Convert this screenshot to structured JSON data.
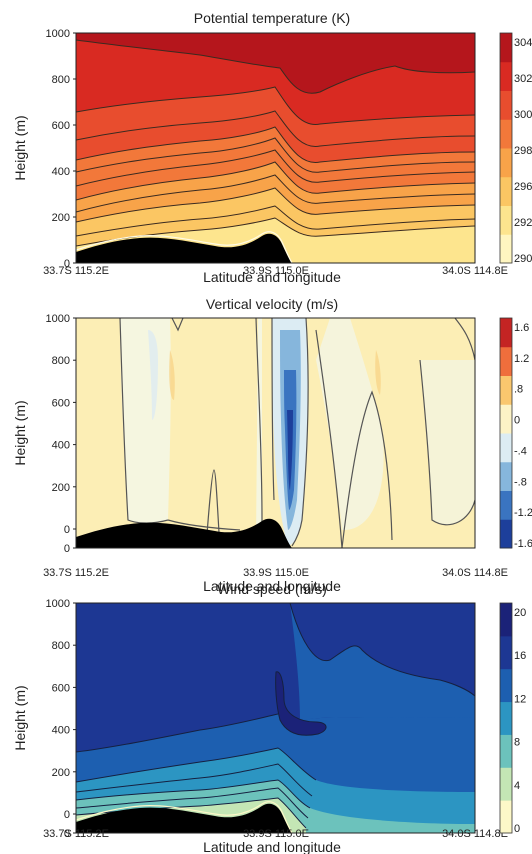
{
  "chart_data": [
    {
      "type": "heatmap",
      "title": "Potential temperature (K)",
      "xlabel": "Latitude and longitude",
      "ylabel": "Height (m)",
      "x_ticks": [
        "33.7S 115.2E",
        "33.9S 115.0E",
        "34.0S 114.8E"
      ],
      "y_ticks": [
        "0",
        "200",
        "400",
        "600",
        "800",
        "1000"
      ],
      "ylim": [
        0,
        1000
      ],
      "colorbar_ticks": [
        "304",
        "302",
        "300",
        "298",
        "296",
        "292",
        "290"
      ],
      "colorscale": [
        "#fff6c0",
        "#fde58e",
        "#fbc663",
        "#f8a349",
        "#f2783a",
        "#e84d2e",
        "#d92a22",
        "#b5161c"
      ]
    },
    {
      "type": "heatmap",
      "title": "Vertical velocity (m/s)",
      "xlabel": "Latitude and longitude",
      "ylabel": "Height (m)",
      "x_ticks": [
        "33.7S 115.2E",
        "33.9S 115.0E",
        "34.0S 114.8E"
      ],
      "y_ticks": [
        "0",
        "0",
        "200",
        "400",
        "600",
        "800",
        "1000"
      ],
      "ylim": [
        0,
        1000
      ],
      "colorbar_ticks": [
        "1.6",
        "1.2",
        ".8",
        "0",
        "-.4",
        "-.8",
        "-1.2",
        "-1.6"
      ],
      "colorscale": [
        "#1d3f9b",
        "#3a74c0",
        "#86b6dc",
        "#dcecf3",
        "#fdf3c6",
        "#fac76e",
        "#ef6e3c",
        "#c42423"
      ]
    },
    {
      "type": "heatmap",
      "title": "Wind speed (m/s)",
      "xlabel": "Latitude and longitude",
      "ylabel": "Height (m)",
      "x_ticks": [
        "33.7S 115.2E",
        "33.9S 115.0E",
        "34.0S 114.8E"
      ],
      "y_ticks": [
        "0",
        "0",
        "200",
        "400",
        "600",
        "800",
        "1000"
      ],
      "ylim": [
        0,
        1000
      ],
      "colorbar_ticks": [
        "20",
        "16",
        "12",
        "8",
        "4",
        "0"
      ],
      "colorscale": [
        "#fdf8c8",
        "#c4e6b5",
        "#6cc2bc",
        "#2c95c2",
        "#1d5fb0",
        "#1d3793",
        "#1b2278"
      ]
    }
  ]
}
